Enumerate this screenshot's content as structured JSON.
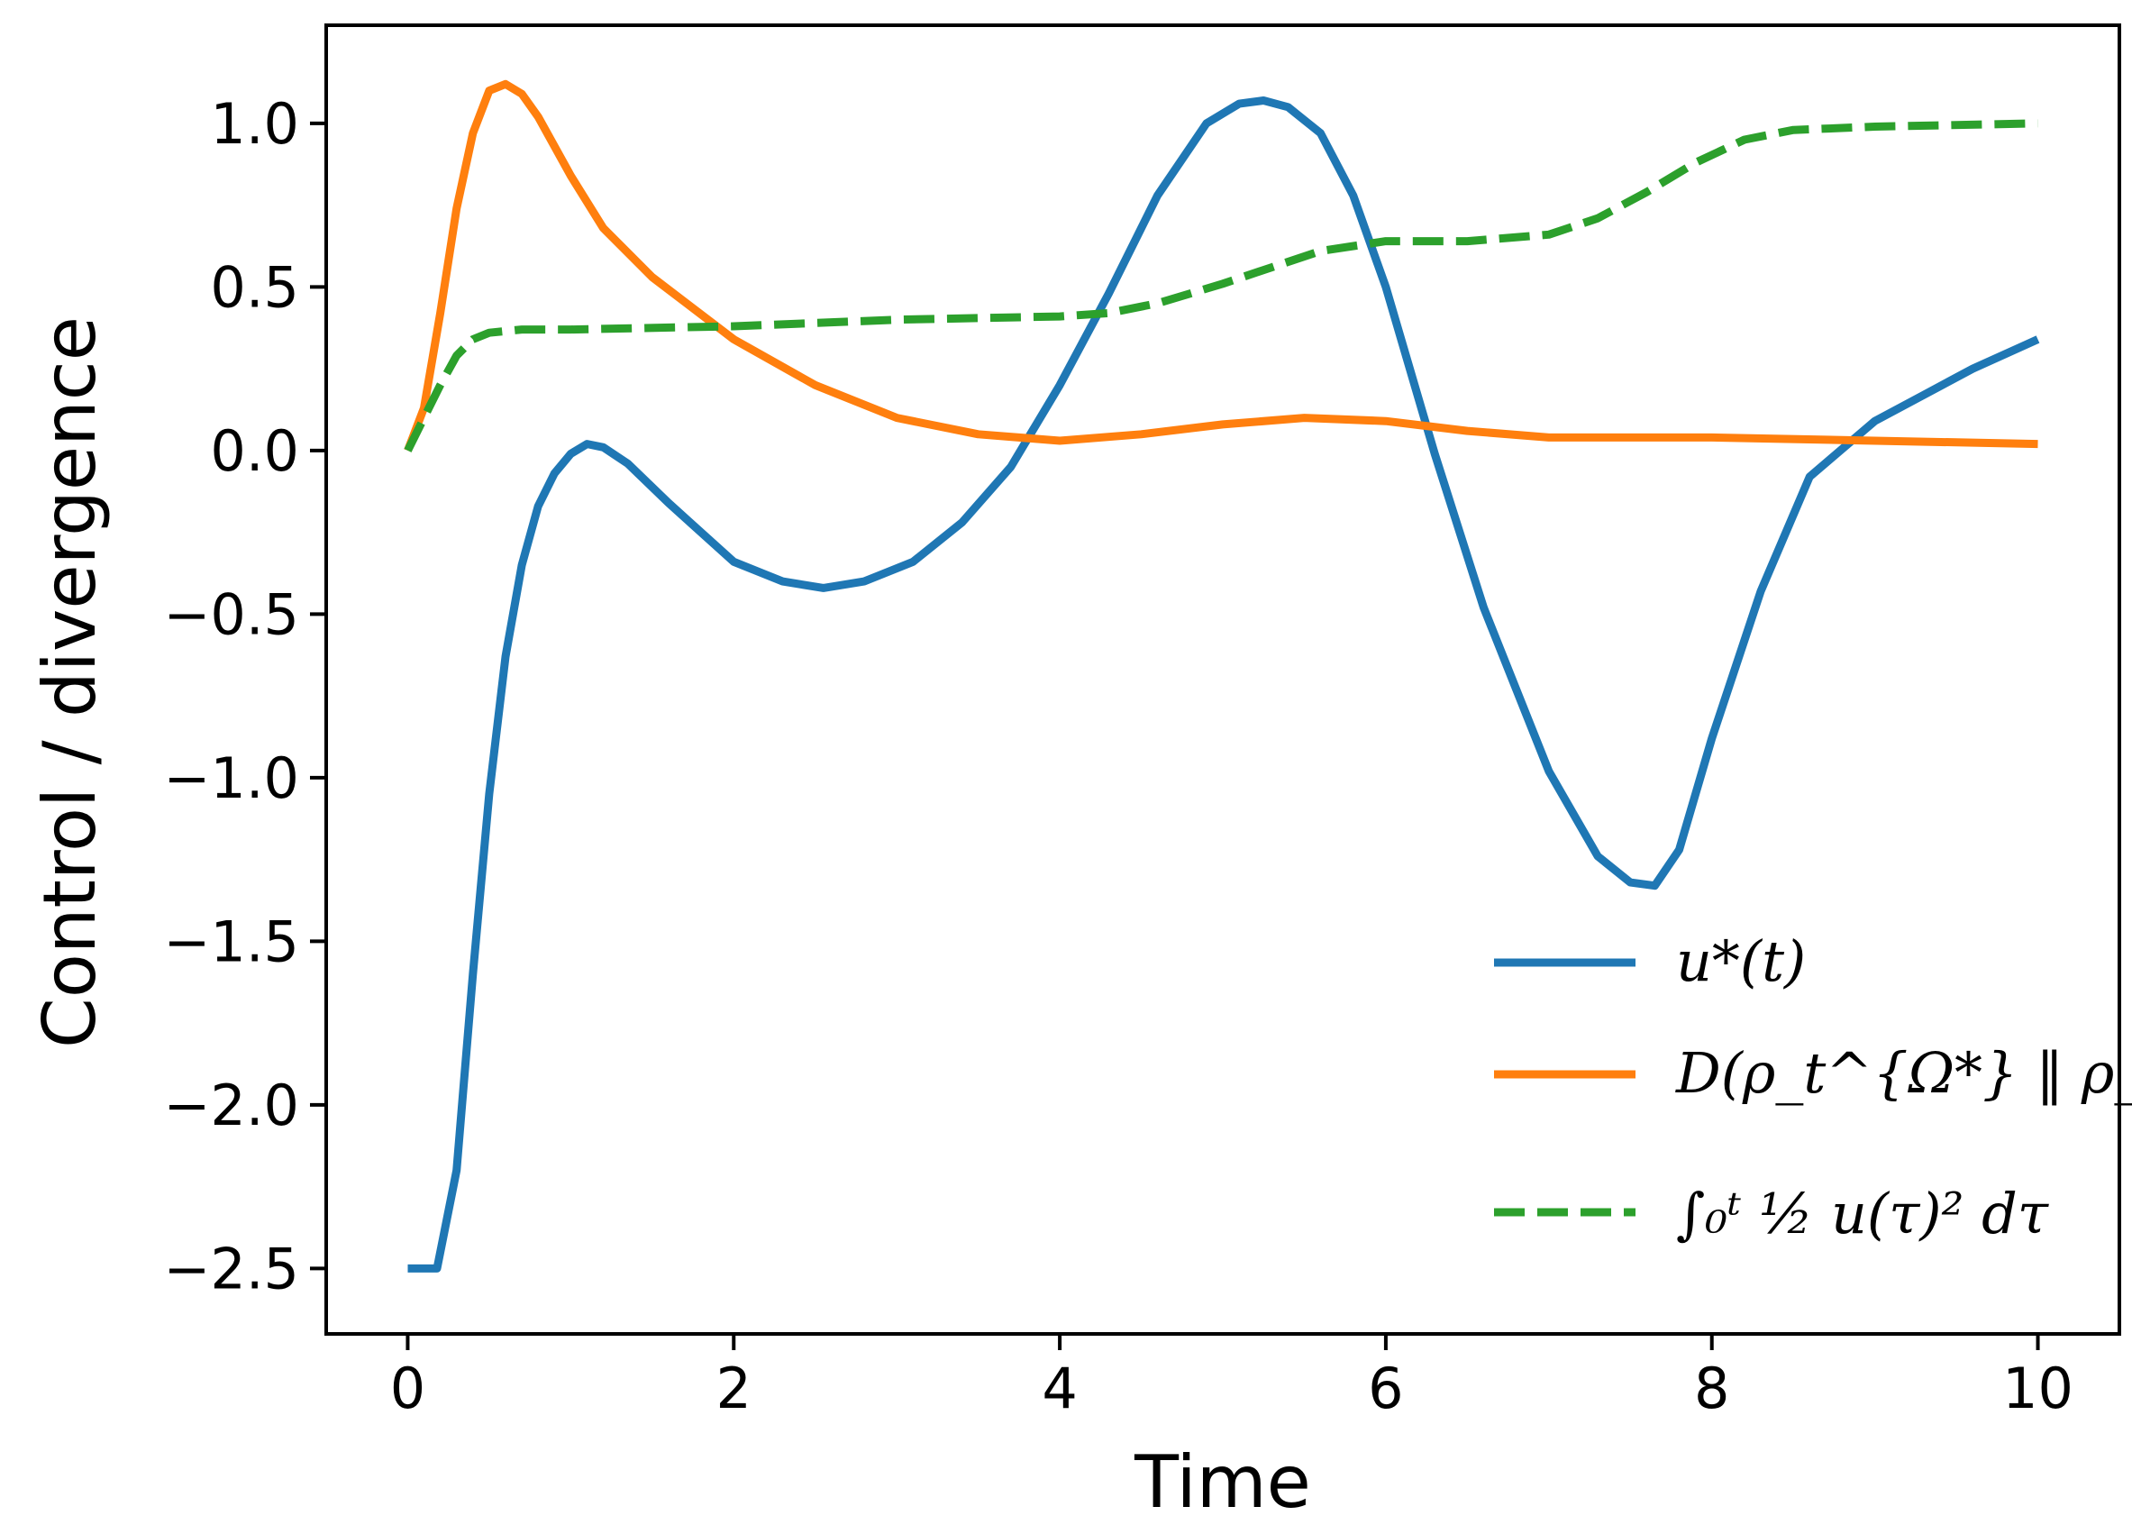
{
  "chart_data": {
    "type": "line",
    "xlabel": "Time",
    "ylabel": "Control / divergence",
    "xlim": [
      -0.5,
      10.5
    ],
    "ylim": [
      -2.7,
      1.3
    ],
    "xticks": [
      0,
      2,
      4,
      6,
      8,
      10
    ],
    "yticks": [
      -2.5,
      -2.0,
      -1.5,
      -1.0,
      -0.5,
      0.0,
      0.5,
      1.0
    ],
    "grid": false,
    "legend_position": "lower-right",
    "series": [
      {
        "name": "u*(t)",
        "color": "#1f77b4",
        "style": "solid",
        "x": [
          0.0,
          0.1,
          0.18,
          0.3,
          0.4,
          0.5,
          0.6,
          0.7,
          0.8,
          0.9,
          1.0,
          1.1,
          1.2,
          1.35,
          1.6,
          2.0,
          2.3,
          2.55,
          2.8,
          3.1,
          3.4,
          3.7,
          4.0,
          4.3,
          4.6,
          4.9,
          5.1,
          5.25,
          5.4,
          5.6,
          5.8,
          6.0,
          6.3,
          6.6,
          7.0,
          7.3,
          7.5,
          7.65,
          7.8,
          8.0,
          8.3,
          8.6,
          9.0,
          9.3,
          9.6,
          10.0
        ],
        "y": [
          -2.5,
          -2.5,
          -2.5,
          -2.2,
          -1.6,
          -1.05,
          -0.63,
          -0.35,
          -0.17,
          -0.07,
          -0.01,
          0.02,
          0.01,
          -0.04,
          -0.16,
          -0.34,
          -0.4,
          -0.42,
          -0.4,
          -0.34,
          -0.22,
          -0.05,
          0.2,
          0.48,
          0.78,
          1.0,
          1.06,
          1.07,
          1.05,
          0.97,
          0.78,
          0.5,
          -0.01,
          -0.48,
          -0.98,
          -1.24,
          -1.32,
          -1.33,
          -1.22,
          -0.88,
          -0.43,
          -0.08,
          0.09,
          0.17,
          0.25,
          0.34
        ]
      },
      {
        "name": "D(ρ_t^{Ω*} ‖ ρ_t^Q)",
        "color": "#ff7f0e",
        "style": "solid",
        "x": [
          0.0,
          0.1,
          0.2,
          0.3,
          0.4,
          0.5,
          0.6,
          0.7,
          0.8,
          1.0,
          1.2,
          1.5,
          2.0,
          2.5,
          3.0,
          3.5,
          4.0,
          4.5,
          5.0,
          5.5,
          6.0,
          6.5,
          7.0,
          8.0,
          9.0,
          10.0
        ],
        "y": [
          0.0,
          0.13,
          0.42,
          0.74,
          0.97,
          1.1,
          1.12,
          1.09,
          1.02,
          0.84,
          0.68,
          0.53,
          0.34,
          0.2,
          0.1,
          0.05,
          0.03,
          0.05,
          0.08,
          0.1,
          0.09,
          0.06,
          0.04,
          0.04,
          0.03,
          0.02
        ]
      },
      {
        "name": "∫₀ᵗ ½ u(τ)² dτ",
        "color": "#2ca02c",
        "style": "dashed",
        "x": [
          0.0,
          0.1,
          0.2,
          0.3,
          0.4,
          0.5,
          0.7,
          1.0,
          2.0,
          3.0,
          4.0,
          4.3,
          4.6,
          5.0,
          5.3,
          5.6,
          6.0,
          6.5,
          7.0,
          7.3,
          7.6,
          7.9,
          8.2,
          8.5,
          9.0,
          10.0
        ],
        "y": [
          0.0,
          0.1,
          0.2,
          0.29,
          0.34,
          0.36,
          0.37,
          0.37,
          0.38,
          0.4,
          0.41,
          0.42,
          0.45,
          0.51,
          0.56,
          0.61,
          0.64,
          0.64,
          0.66,
          0.71,
          0.79,
          0.88,
          0.95,
          0.98,
          0.99,
          1.0
        ]
      }
    ]
  }
}
